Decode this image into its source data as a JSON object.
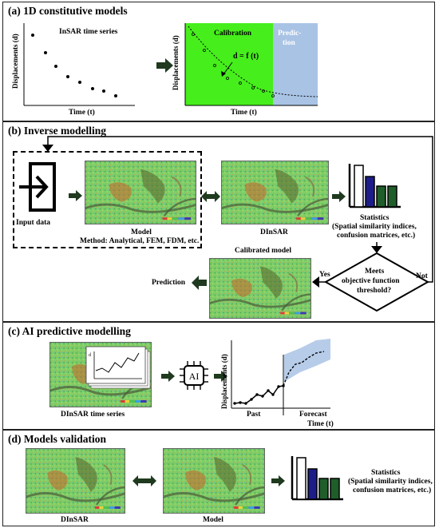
{
  "panel_a": {
    "title": "(a) 1D constitutive models",
    "left_chart": {
      "title": "InSAR time series",
      "ylabel": "Displacements (d)",
      "xlabel": "Time (t)"
    },
    "right_chart": {
      "calibration": "Calibration",
      "prediction_l1": "Predic-",
      "prediction_l2": "tion",
      "equation": "d = f (t)",
      "ylabel": "Displacements (d)",
      "xlabel": "Time (t)"
    },
    "colors": {
      "calibration": "#46ee1c",
      "prediction": "#a9c3e5"
    }
  },
  "panel_b": {
    "title": "(b) Inverse modelling",
    "input_data": "Input data",
    "model": "Model",
    "method": "Method: Analytical, FEM, FDM, etc.",
    "dinsar": "DInSAR",
    "statistics": "Statistics",
    "statistics_detail_1": "(Spatial similarity indices,",
    "statistics_detail_2": "confusion matrices, etc.)",
    "calibrated_model": "Calibrated model",
    "prediction": "Prediction",
    "decision_1": "Meets",
    "decision_2": "objective function",
    "decision_3": "threshold?",
    "yes": "Yes",
    "no": "Not"
  },
  "panel_c": {
    "title": "(c) AI predictive modelling",
    "dinsar_ts": "DInSAR time series",
    "inset_label": "d",
    "ai_label": "AI",
    "ylabel": "Displacements (d)",
    "past": "Past",
    "forecast": "Forecast",
    "xlabel": "Time (t)"
  },
  "panel_d": {
    "title": "(d) Models validation",
    "dinsar": "DInSAR",
    "model": "Model",
    "statistics": "Statistics",
    "statistics_detail_1": "(Spatial similarity indices,",
    "statistics_detail_2": "confusion matrices, etc.)"
  },
  "colors": {
    "arrow": "#1f3a1f",
    "bar_blue": "#1d1d8a",
    "bar_green": "#1f5e2a"
  }
}
